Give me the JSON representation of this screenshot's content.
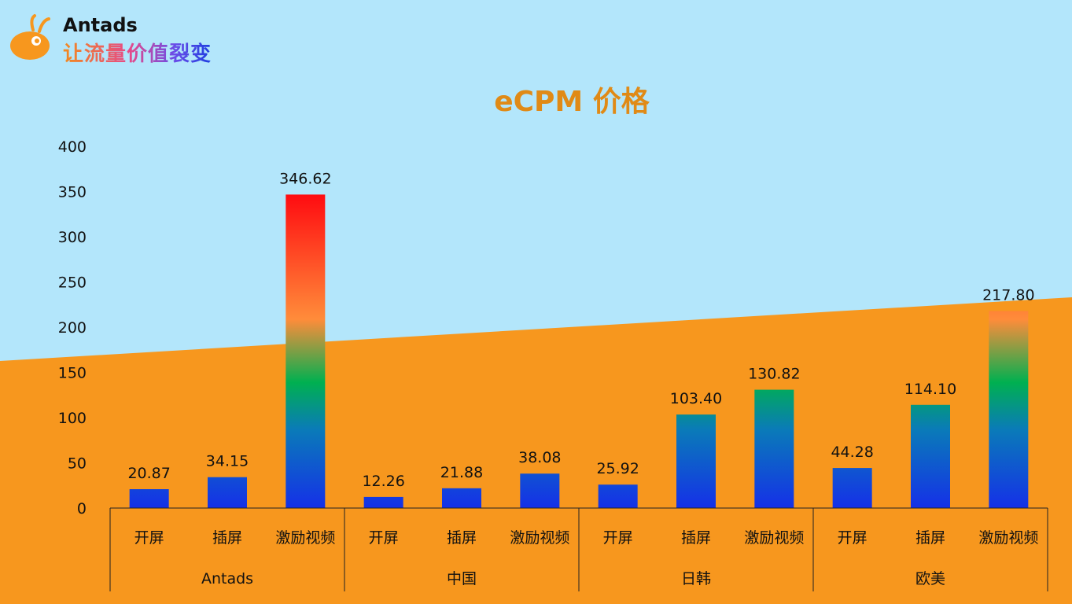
{
  "brand": {
    "name": "Antads",
    "slogan": "让流量价值裂变",
    "logo_icon": "ant-logo-icon"
  },
  "colors": {
    "sky": "#b3e6fb",
    "orange": "#f7971e",
    "title": "#e08a16",
    "bar_bottom": "#1530e8",
    "bar_green": "#00b050",
    "bar_orange": "#ff8c3a",
    "bar_top": "#ff0a10"
  },
  "chart_data": {
    "type": "bar",
    "title": "eCPM 价格",
    "xlabel": "",
    "ylabel": "",
    "ylim": [
      0,
      400
    ],
    "yticks": [
      "0",
      "50",
      "100",
      "150",
      "200",
      "250",
      "300",
      "350",
      "400"
    ],
    "grid": false,
    "groups": [
      {
        "name": "Antads",
        "categories": [
          "开屏",
          "插屏",
          "激励视频"
        ],
        "values": [
          20.87,
          34.15,
          346.62
        ],
        "labels": [
          "20.87",
          "34.15",
          "346.62"
        ]
      },
      {
        "name": "中国",
        "categories": [
          "开屏",
          "插屏",
          "激励视频"
        ],
        "values": [
          12.26,
          21.88,
          38.08
        ],
        "labels": [
          "12.26",
          "21.88",
          "38.08"
        ]
      },
      {
        "name": "日韩",
        "categories": [
          "开屏",
          "插屏",
          "激励视频"
        ],
        "values": [
          25.92,
          103.4,
          130.82
        ],
        "labels": [
          "25.92",
          "103.40",
          "130.82"
        ]
      },
      {
        "name": "欧美",
        "categories": [
          "开屏",
          "插屏",
          "激励视频"
        ],
        "values": [
          44.28,
          114.1,
          217.8
        ],
        "labels": [
          "44.28",
          "114.10",
          "217.80"
        ]
      }
    ]
  }
}
